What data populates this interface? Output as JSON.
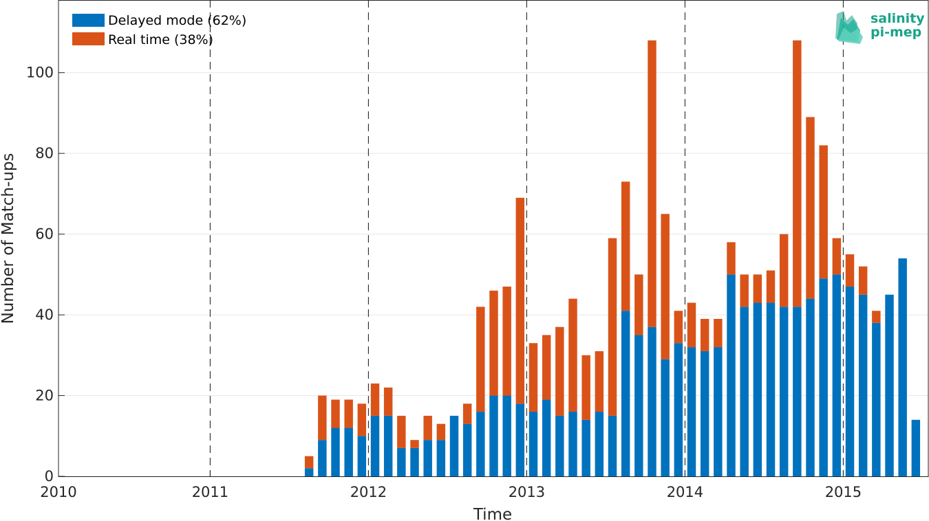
{
  "chart_data": {
    "type": "bar",
    "stacked": true,
    "title": "",
    "xlabel": "Time",
    "ylabel": "Number of Match-ups",
    "xlim": [
      "2010-01",
      "2015-07"
    ],
    "ylim": [
      0,
      118
    ],
    "x_ticks": [
      "2010",
      "2011",
      "2012",
      "2013",
      "2014",
      "2015"
    ],
    "y_ticks": [
      0,
      20,
      40,
      60,
      80,
      100
    ],
    "year_markers": [
      "2011",
      "2012",
      "2013",
      "2014",
      "2015"
    ],
    "grid": "horizontal",
    "legend_position": "top-left",
    "months": [
      "2011-08",
      "2011-09",
      "2011-10",
      "2011-11",
      "2011-12",
      "2012-01",
      "2012-02",
      "2012-03",
      "2012-04",
      "2012-05",
      "2012-06",
      "2012-07",
      "2012-08",
      "2012-09",
      "2012-10",
      "2012-11",
      "2012-12",
      "2013-01",
      "2013-02",
      "2013-03",
      "2013-04",
      "2013-05",
      "2013-06",
      "2013-07",
      "2013-08",
      "2013-09",
      "2013-10",
      "2013-11",
      "2013-12",
      "2014-01",
      "2014-02",
      "2014-03",
      "2014-04",
      "2014-05",
      "2014-06",
      "2014-07",
      "2014-08",
      "2014-09",
      "2014-10",
      "2014-11",
      "2014-12",
      "2015-01",
      "2015-02",
      "2015-03",
      "2015-04",
      "2015-05",
      "2015-06"
    ],
    "series": [
      {
        "name": "Delayed mode (62%)",
        "color": "#0072bd",
        "values": [
          2,
          9,
          12,
          12,
          10,
          15,
          15,
          7,
          7,
          9,
          9,
          15,
          13,
          16,
          20,
          20,
          18,
          16,
          19,
          15,
          16,
          14,
          16,
          15,
          41,
          35,
          37,
          29,
          33,
          32,
          31,
          32,
          50,
          42,
          43,
          43,
          42,
          42,
          44,
          49,
          50,
          47,
          45,
          38,
          45,
          54,
          14
        ]
      },
      {
        "name": "Real time (38%)",
        "color": "#d95319",
        "values": [
          3,
          11,
          7,
          7,
          8,
          8,
          7,
          8,
          2,
          6,
          4,
          0,
          5,
          26,
          26,
          27,
          51,
          17,
          16,
          22,
          28,
          16,
          15,
          44,
          32,
          15,
          71,
          36,
          8,
          11,
          8,
          7,
          8,
          8,
          7,
          8,
          18,
          66,
          45,
          33,
          9,
          8,
          7,
          3,
          0,
          0,
          0
        ]
      }
    ]
  },
  "logo": {
    "line1": "salinity",
    "line2": "pi-mep",
    "color": "#1aa38a"
  }
}
